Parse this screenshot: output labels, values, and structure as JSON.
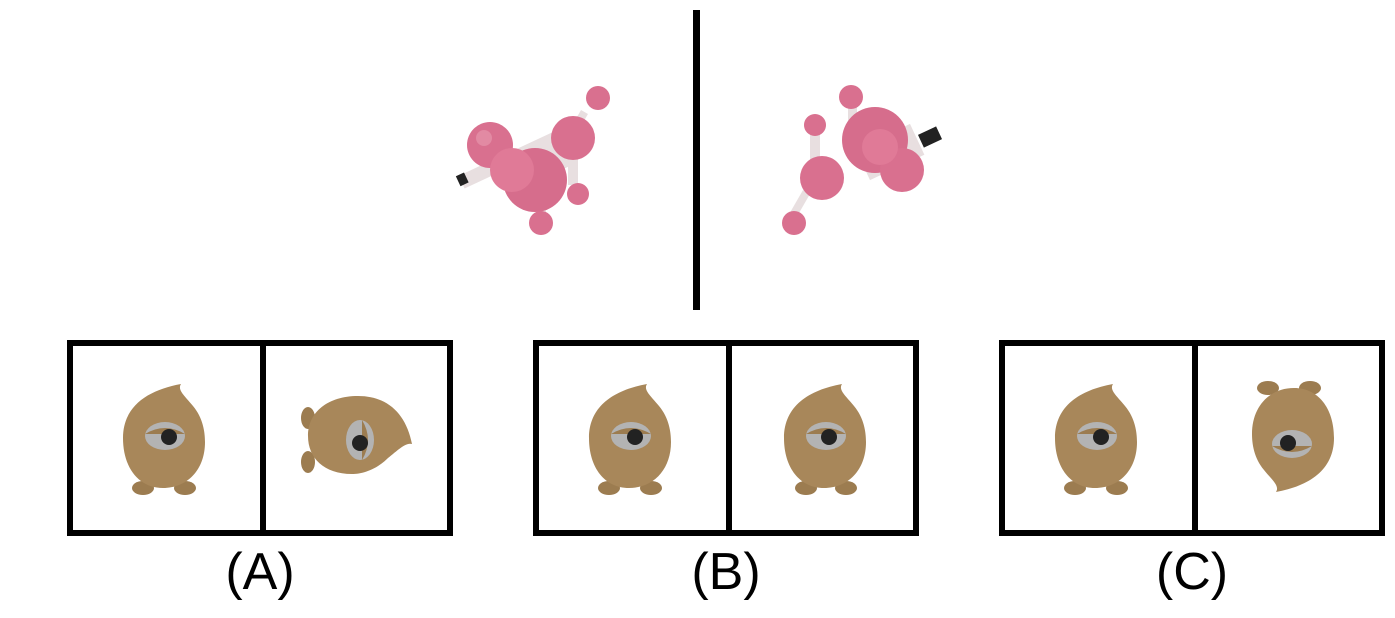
{
  "options": [
    {
      "label": "(A)",
      "left_view": "creature-front",
      "right_view": "creature-rotated-90"
    },
    {
      "label": "(B)",
      "left_view": "creature-front",
      "right_view": "creature-front"
    },
    {
      "label": "(C)",
      "left_view": "creature-front",
      "right_view": "creature-upside-down"
    }
  ],
  "colors": {
    "molecule_pink": "#d9708f",
    "bond_white": "#e8dfe0",
    "creature_tan": "#a8875a",
    "outline": "#000000"
  }
}
